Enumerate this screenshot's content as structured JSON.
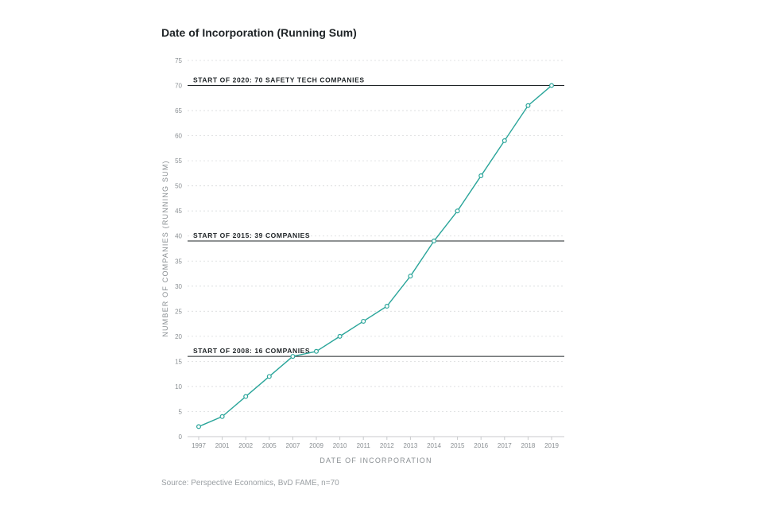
{
  "title": "Date of Incorporation (Running Sum)",
  "source": "Source: Perspective Economics, BvD FAME, n=70",
  "colors": {
    "line": "#2aa59a",
    "grid": "#d8dadc",
    "annotation_line": "#1f2427",
    "axis": "#c8cacc"
  },
  "chart_data": {
    "type": "line",
    "title": "Date of Incorporation (Running Sum)",
    "xlabel": "DATE OF INCORPORATION",
    "ylabel": "NUMBER OF COMPANIES (RUNNING SUM)",
    "categories": [
      "1997",
      "2001",
      "2002",
      "2005",
      "2007",
      "2009",
      "2010",
      "2011",
      "2012",
      "2013",
      "2014",
      "2015",
      "2016",
      "2017",
      "2018",
      "2019"
    ],
    "series": [
      {
        "values": [
          2,
          4,
          8,
          12,
          16,
          17,
          20,
          23,
          26,
          32,
          39,
          45,
          52,
          59,
          66,
          70
        ]
      }
    ],
    "ylim": [
      0,
      75
    ],
    "yticks": [
      0,
      5,
      10,
      15,
      20,
      25,
      30,
      35,
      40,
      45,
      50,
      55,
      60,
      65,
      70,
      75
    ],
    "grid": true,
    "annotations": [
      {
        "value": 70,
        "label": "START OF 2020: 70 SAFETY TECH COMPANIES"
      },
      {
        "value": 39,
        "label": "START OF 2015: 39 COMPANIES"
      },
      {
        "value": 16,
        "label": "START OF 2008: 16 COMPANIES"
      }
    ]
  }
}
